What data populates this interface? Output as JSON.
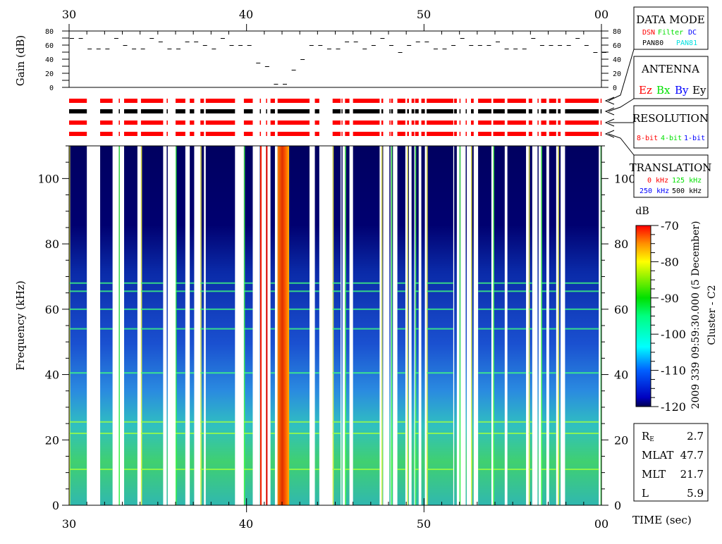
{
  "chart_data": {
    "type": "heatmap",
    "title": "Cluster - C2",
    "timestamp": "2009 339 09:59:30.000 (5 December)",
    "xlabel": "TIME (sec)",
    "x_ticks": [
      "30",
      "40",
      "50",
      "00"
    ],
    "x_range": [
      30,
      60
    ],
    "gain_panel": {
      "ylabel": "Gain (dB)",
      "y_ticks": [
        "0",
        "20",
        "40",
        "60",
        "80"
      ],
      "ylim": [
        0,
        80
      ],
      "t": [
        30,
        30.5,
        31,
        31.5,
        32,
        32.5,
        33,
        33.5,
        34,
        34.5,
        35,
        35.5,
        36,
        36.5,
        37,
        37.5,
        38,
        38.5,
        39,
        39.5,
        40,
        40.5,
        41,
        41.5,
        42,
        42.5,
        43,
        43.5,
        44,
        44.5,
        45,
        45.5,
        46,
        46.5,
        47,
        47.5,
        48,
        48.5,
        49,
        49.5,
        50,
        50.5,
        51,
        51.5,
        52,
        52.5,
        53,
        53.5,
        54,
        54.5,
        55,
        55.5,
        56,
        56.5,
        57,
        57.5,
        58,
        58.5,
        59,
        59.5,
        60
      ],
      "gain": [
        70,
        70,
        55,
        55,
        55,
        70,
        60,
        55,
        55,
        70,
        65,
        55,
        55,
        65,
        65,
        60,
        55,
        70,
        60,
        60,
        60,
        35,
        30,
        5,
        5,
        25,
        40,
        60,
        60,
        55,
        55,
        65,
        65,
        55,
        60,
        70,
        60,
        50,
        60,
        65,
        65,
        55,
        55,
        60,
        70,
        60,
        60,
        60,
        65,
        55,
        55,
        55,
        70,
        60,
        60,
        60,
        60,
        70,
        60,
        50,
        50
      ]
    },
    "status_rows": [
      {
        "name": "data-mode",
        "color": "#ff0000"
      },
      {
        "name": "antenna",
        "color": "#000000"
      },
      {
        "name": "resolution",
        "color": "#ff0000"
      },
      {
        "name": "translation",
        "color": "#ff0000"
      }
    ],
    "data_segments": [
      [
        30.0,
        31.0
      ],
      [
        31.75,
        32.45
      ],
      [
        32.8,
        32.85
      ],
      [
        33.1,
        33.85
      ],
      [
        34.05,
        35.3
      ],
      [
        35.5,
        35.55
      ],
      [
        36.0,
        36.55
      ],
      [
        36.8,
        37.05
      ],
      [
        37.4,
        37.6
      ],
      [
        37.7,
        39.35
      ],
      [
        39.85,
        40.35
      ],
      [
        40.75,
        40.8
      ],
      [
        41.1,
        41.15
      ],
      [
        41.35,
        41.6
      ],
      [
        41.75,
        43.55
      ],
      [
        43.85,
        44.1
      ],
      [
        44.85,
        45.3
      ],
      [
        45.35,
        45.4
      ],
      [
        45.55,
        45.8
      ],
      [
        46.0,
        47.5
      ],
      [
        47.6,
        47.7
      ],
      [
        48.05,
        48.1
      ],
      [
        48.15,
        48.25
      ],
      [
        48.5,
        48.95
      ],
      [
        49.05,
        49.15
      ],
      [
        49.3,
        49.45
      ],
      [
        49.5,
        49.7
      ],
      [
        49.85,
        50.05
      ],
      [
        50.15,
        51.65
      ],
      [
        51.7,
        51.85
      ],
      [
        52.0,
        52.05
      ],
      [
        52.35,
        52.4
      ],
      [
        52.65,
        52.8
      ],
      [
        53.05,
        53.8
      ],
      [
        53.9,
        54.55
      ],
      [
        54.7,
        55.75
      ],
      [
        55.9,
        56.1
      ],
      [
        56.4,
        56.45
      ],
      [
        56.6,
        56.9
      ],
      [
        57.05,
        57.45
      ],
      [
        57.55,
        57.7
      ],
      [
        57.95,
        59.85
      ],
      [
        59.95,
        60.0
      ]
    ],
    "spectrogram": {
      "ylabel": "Frequency (kHz)",
      "y_ticks": [
        "0",
        "20",
        "40",
        "60",
        "80",
        "100"
      ],
      "ylim": [
        0,
        110
      ],
      "emission_lines_khz": [
        68,
        65.5,
        60,
        54,
        40.5,
        25.5,
        22,
        11
      ],
      "intense_band": {
        "t": [
          41.75,
          42.4
        ],
        "level_db": -75
      },
      "background_db": {
        "high_freq": -120,
        "mid_freq": -108,
        "low_freq": -92
      }
    },
    "colorbar": {
      "label": "dB",
      "ticks": [
        "-70",
        "-80",
        "-90",
        "-100",
        "-110",
        "-120"
      ],
      "range": [
        -120,
        -70
      ],
      "colors": [
        "#000060",
        "#0000ff",
        "#00ffff",
        "#00ff00",
        "#ffff00",
        "#ff8000",
        "#ff0000"
      ]
    }
  },
  "legend": {
    "data_mode": {
      "title": "DATA MODE",
      "items": [
        {
          "label": "DSN",
          "color": "#ff0000"
        },
        {
          "label": "Filter",
          "color": "#00ff00"
        },
        {
          "label": "DC",
          "color": "#0000ff"
        },
        {
          "label": "PAN80",
          "color": "#000000"
        },
        {
          "label": "PAN81",
          "color": "#00ffff"
        }
      ]
    },
    "antenna": {
      "title": "ANTENNA",
      "items": [
        {
          "label": "Ez",
          "color": "#ff0000"
        },
        {
          "label": "Bx",
          "color": "#00ff00"
        },
        {
          "label": "By",
          "color": "#0000ff"
        },
        {
          "label": "Ey",
          "color": "#000000"
        }
      ]
    },
    "resolution": {
      "title": "RESOLUTION",
      "items": [
        {
          "label": "8-bit",
          "color": "#ff0000"
        },
        {
          "label": "4-bit",
          "color": "#00ff00"
        },
        {
          "label": "1-bit",
          "color": "#0000ff"
        }
      ]
    },
    "translation": {
      "title": "TRANSLATION",
      "items": [
        {
          "label": "0 kHz",
          "color": "#ff0000"
        },
        {
          "label": "125 kHz",
          "color": "#00ff00"
        },
        {
          "label": "250 kHz",
          "color": "#0000ff"
        },
        {
          "label": "500 kHz",
          "color": "#000000"
        }
      ]
    }
  },
  "orbit_info": [
    {
      "label": "RE",
      "value": "2.7"
    },
    {
      "label": "MLAT",
      "value": "47.7"
    },
    {
      "label": "MLT",
      "value": "21.7"
    },
    {
      "label": "L",
      "value": "5.9"
    }
  ]
}
